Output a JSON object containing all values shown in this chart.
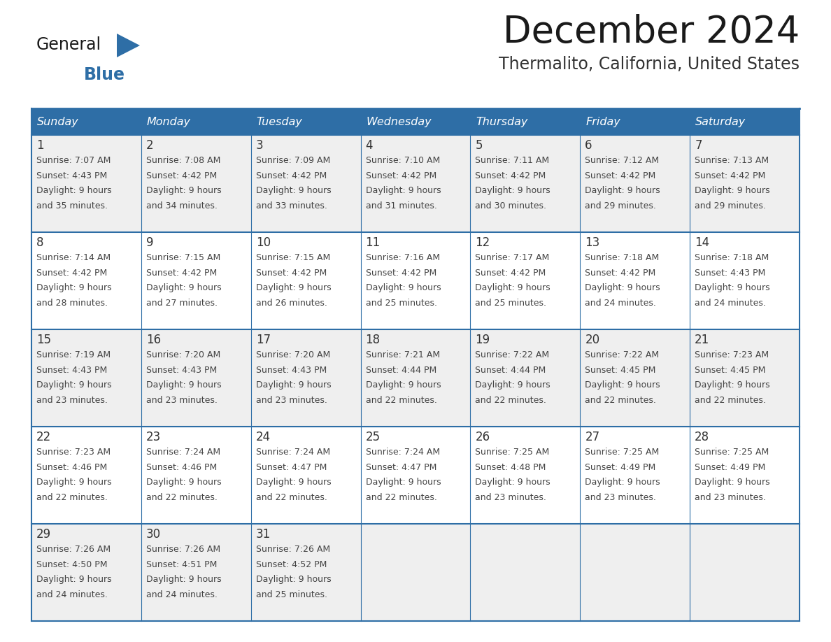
{
  "title": "December 2024",
  "subtitle": "Thermalito, California, United States",
  "header_bg": "#2E6EA6",
  "header_text_color": "#FFFFFF",
  "cell_bg_odd": "#EFEFEF",
  "cell_bg_even": "#FFFFFF",
  "border_color": "#2E6EA6",
  "day_names": [
    "Sunday",
    "Monday",
    "Tuesday",
    "Wednesday",
    "Thursday",
    "Friday",
    "Saturday"
  ],
  "title_color": "#1a1a1a",
  "subtitle_color": "#333333",
  "day_number_color": "#333333",
  "cell_text_color": "#444444",
  "logo_general_color": "#1a1a1a",
  "logo_blue_color": "#2E6EA6",
  "calendar": [
    [
      {
        "day": 1,
        "sunrise": "7:07 AM",
        "sunset": "4:43 PM",
        "daylight_h": "9 hours",
        "daylight_m": "and 35 minutes."
      },
      {
        "day": 2,
        "sunrise": "7:08 AM",
        "sunset": "4:42 PM",
        "daylight_h": "9 hours",
        "daylight_m": "and 34 minutes."
      },
      {
        "day": 3,
        "sunrise": "7:09 AM",
        "sunset": "4:42 PM",
        "daylight_h": "9 hours",
        "daylight_m": "and 33 minutes."
      },
      {
        "day": 4,
        "sunrise": "7:10 AM",
        "sunset": "4:42 PM",
        "daylight_h": "9 hours",
        "daylight_m": "and 31 minutes."
      },
      {
        "day": 5,
        "sunrise": "7:11 AM",
        "sunset": "4:42 PM",
        "daylight_h": "9 hours",
        "daylight_m": "and 30 minutes."
      },
      {
        "day": 6,
        "sunrise": "7:12 AM",
        "sunset": "4:42 PM",
        "daylight_h": "9 hours",
        "daylight_m": "and 29 minutes."
      },
      {
        "day": 7,
        "sunrise": "7:13 AM",
        "sunset": "4:42 PM",
        "daylight_h": "9 hours",
        "daylight_m": "and 29 minutes."
      }
    ],
    [
      {
        "day": 8,
        "sunrise": "7:14 AM",
        "sunset": "4:42 PM",
        "daylight_h": "9 hours",
        "daylight_m": "and 28 minutes."
      },
      {
        "day": 9,
        "sunrise": "7:15 AM",
        "sunset": "4:42 PM",
        "daylight_h": "9 hours",
        "daylight_m": "and 27 minutes."
      },
      {
        "day": 10,
        "sunrise": "7:15 AM",
        "sunset": "4:42 PM",
        "daylight_h": "9 hours",
        "daylight_m": "and 26 minutes."
      },
      {
        "day": 11,
        "sunrise": "7:16 AM",
        "sunset": "4:42 PM",
        "daylight_h": "9 hours",
        "daylight_m": "and 25 minutes."
      },
      {
        "day": 12,
        "sunrise": "7:17 AM",
        "sunset": "4:42 PM",
        "daylight_h": "9 hours",
        "daylight_m": "and 25 minutes."
      },
      {
        "day": 13,
        "sunrise": "7:18 AM",
        "sunset": "4:42 PM",
        "daylight_h": "9 hours",
        "daylight_m": "and 24 minutes."
      },
      {
        "day": 14,
        "sunrise": "7:18 AM",
        "sunset": "4:43 PM",
        "daylight_h": "9 hours",
        "daylight_m": "and 24 minutes."
      }
    ],
    [
      {
        "day": 15,
        "sunrise": "7:19 AM",
        "sunset": "4:43 PM",
        "daylight_h": "9 hours",
        "daylight_m": "and 23 minutes."
      },
      {
        "day": 16,
        "sunrise": "7:20 AM",
        "sunset": "4:43 PM",
        "daylight_h": "9 hours",
        "daylight_m": "and 23 minutes."
      },
      {
        "day": 17,
        "sunrise": "7:20 AM",
        "sunset": "4:43 PM",
        "daylight_h": "9 hours",
        "daylight_m": "and 23 minutes."
      },
      {
        "day": 18,
        "sunrise": "7:21 AM",
        "sunset": "4:44 PM",
        "daylight_h": "9 hours",
        "daylight_m": "and 22 minutes."
      },
      {
        "day": 19,
        "sunrise": "7:22 AM",
        "sunset": "4:44 PM",
        "daylight_h": "9 hours",
        "daylight_m": "and 22 minutes."
      },
      {
        "day": 20,
        "sunrise": "7:22 AM",
        "sunset": "4:45 PM",
        "daylight_h": "9 hours",
        "daylight_m": "and 22 minutes."
      },
      {
        "day": 21,
        "sunrise": "7:23 AM",
        "sunset": "4:45 PM",
        "daylight_h": "9 hours",
        "daylight_m": "and 22 minutes."
      }
    ],
    [
      {
        "day": 22,
        "sunrise": "7:23 AM",
        "sunset": "4:46 PM",
        "daylight_h": "9 hours",
        "daylight_m": "and 22 minutes."
      },
      {
        "day": 23,
        "sunrise": "7:24 AM",
        "sunset": "4:46 PM",
        "daylight_h": "9 hours",
        "daylight_m": "and 22 minutes."
      },
      {
        "day": 24,
        "sunrise": "7:24 AM",
        "sunset": "4:47 PM",
        "daylight_h": "9 hours",
        "daylight_m": "and 22 minutes."
      },
      {
        "day": 25,
        "sunrise": "7:24 AM",
        "sunset": "4:47 PM",
        "daylight_h": "9 hours",
        "daylight_m": "and 22 minutes."
      },
      {
        "day": 26,
        "sunrise": "7:25 AM",
        "sunset": "4:48 PM",
        "daylight_h": "9 hours",
        "daylight_m": "and 23 minutes."
      },
      {
        "day": 27,
        "sunrise": "7:25 AM",
        "sunset": "4:49 PM",
        "daylight_h": "9 hours",
        "daylight_m": "and 23 minutes."
      },
      {
        "day": 28,
        "sunrise": "7:25 AM",
        "sunset": "4:49 PM",
        "daylight_h": "9 hours",
        "daylight_m": "and 23 minutes."
      }
    ],
    [
      {
        "day": 29,
        "sunrise": "7:26 AM",
        "sunset": "4:50 PM",
        "daylight_h": "9 hours",
        "daylight_m": "and 24 minutes."
      },
      {
        "day": 30,
        "sunrise": "7:26 AM",
        "sunset": "4:51 PM",
        "daylight_h": "9 hours",
        "daylight_m": "and 24 minutes."
      },
      {
        "day": 31,
        "sunrise": "7:26 AM",
        "sunset": "4:52 PM",
        "daylight_h": "9 hours",
        "daylight_m": "and 25 minutes."
      },
      null,
      null,
      null,
      null
    ]
  ]
}
